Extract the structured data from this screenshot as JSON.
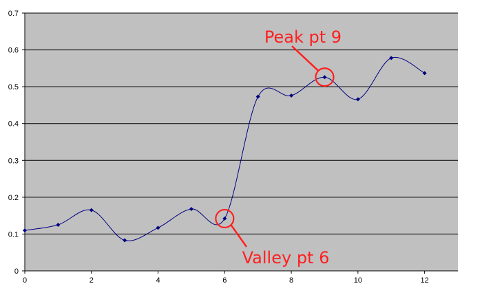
{
  "chart_data": {
    "type": "line",
    "title": "",
    "xlabel": "",
    "ylabel": "",
    "x": [
      0,
      1,
      2,
      3,
      4,
      5,
      6,
      7,
      8,
      9,
      10,
      11,
      12
    ],
    "series": [
      {
        "values": [
          0.11,
          0.125,
          0.165,
          0.083,
          0.117,
          0.168,
          0.142,
          0.473,
          0.476,
          0.526,
          0.466,
          0.578,
          0.537
        ]
      }
    ],
    "xlim": [
      0,
      13
    ],
    "ylim": [
      0,
      0.7
    ],
    "x_ticks": [
      0,
      2,
      4,
      6,
      8,
      10,
      12
    ],
    "y_ticks": [
      0,
      0.1,
      0.2,
      0.3,
      0.4,
      0.5,
      0.6,
      0.7
    ],
    "grid": "horizontal",
    "smooth": true,
    "annotations": [
      {
        "text": "Peak pt 9",
        "point_index": 9,
        "placement": "above-left"
      },
      {
        "text": "Valley pt 6",
        "point_index": 6,
        "placement": "below-right"
      }
    ],
    "colors": {
      "plot_area": "#c0c0c0",
      "line": "#000080",
      "grid": "#000000",
      "annotation": "#ff2020"
    }
  }
}
